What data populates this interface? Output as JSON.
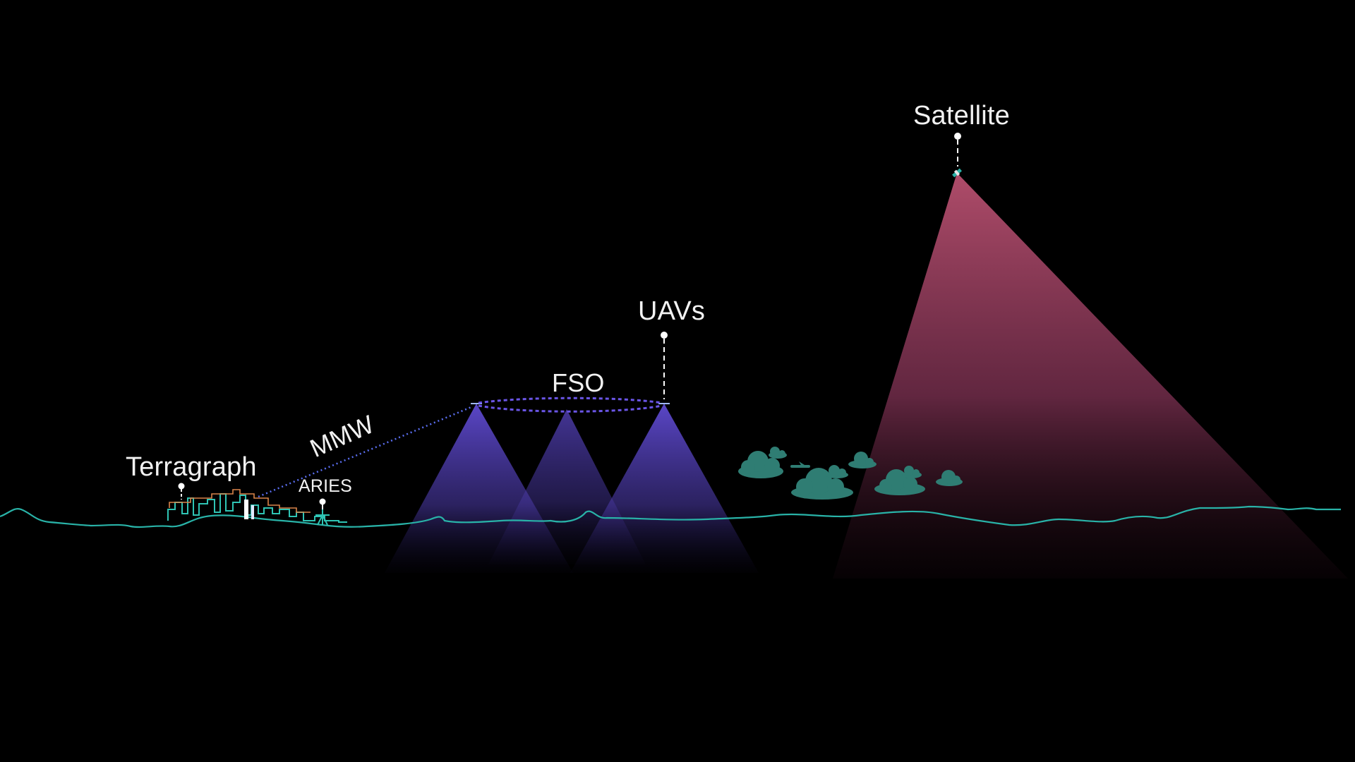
{
  "labels": {
    "satellite": "Satellite",
    "uavs": "UAVs",
    "fso": "FSO",
    "mmw": "MMW",
    "terragraph": "Terragraph",
    "aries": "ARIES"
  },
  "colors": {
    "background": "#000000",
    "ground_line": "#29b3a8",
    "satellite_beam": "#b4506e",
    "uav_beam": "#5a46c8",
    "fso_link": "#6a55e6",
    "mmw_link": "#5a6ef0",
    "cloud": "#2f7d73",
    "city": "#2fc4b4",
    "city_roof": "#d9844a",
    "label": "#f2f2f2"
  },
  "icons": [
    "satellite-icon",
    "uav-icon",
    "cloud-icon",
    "airplane-icon",
    "city-skyline",
    "aries-tower-icon"
  ]
}
